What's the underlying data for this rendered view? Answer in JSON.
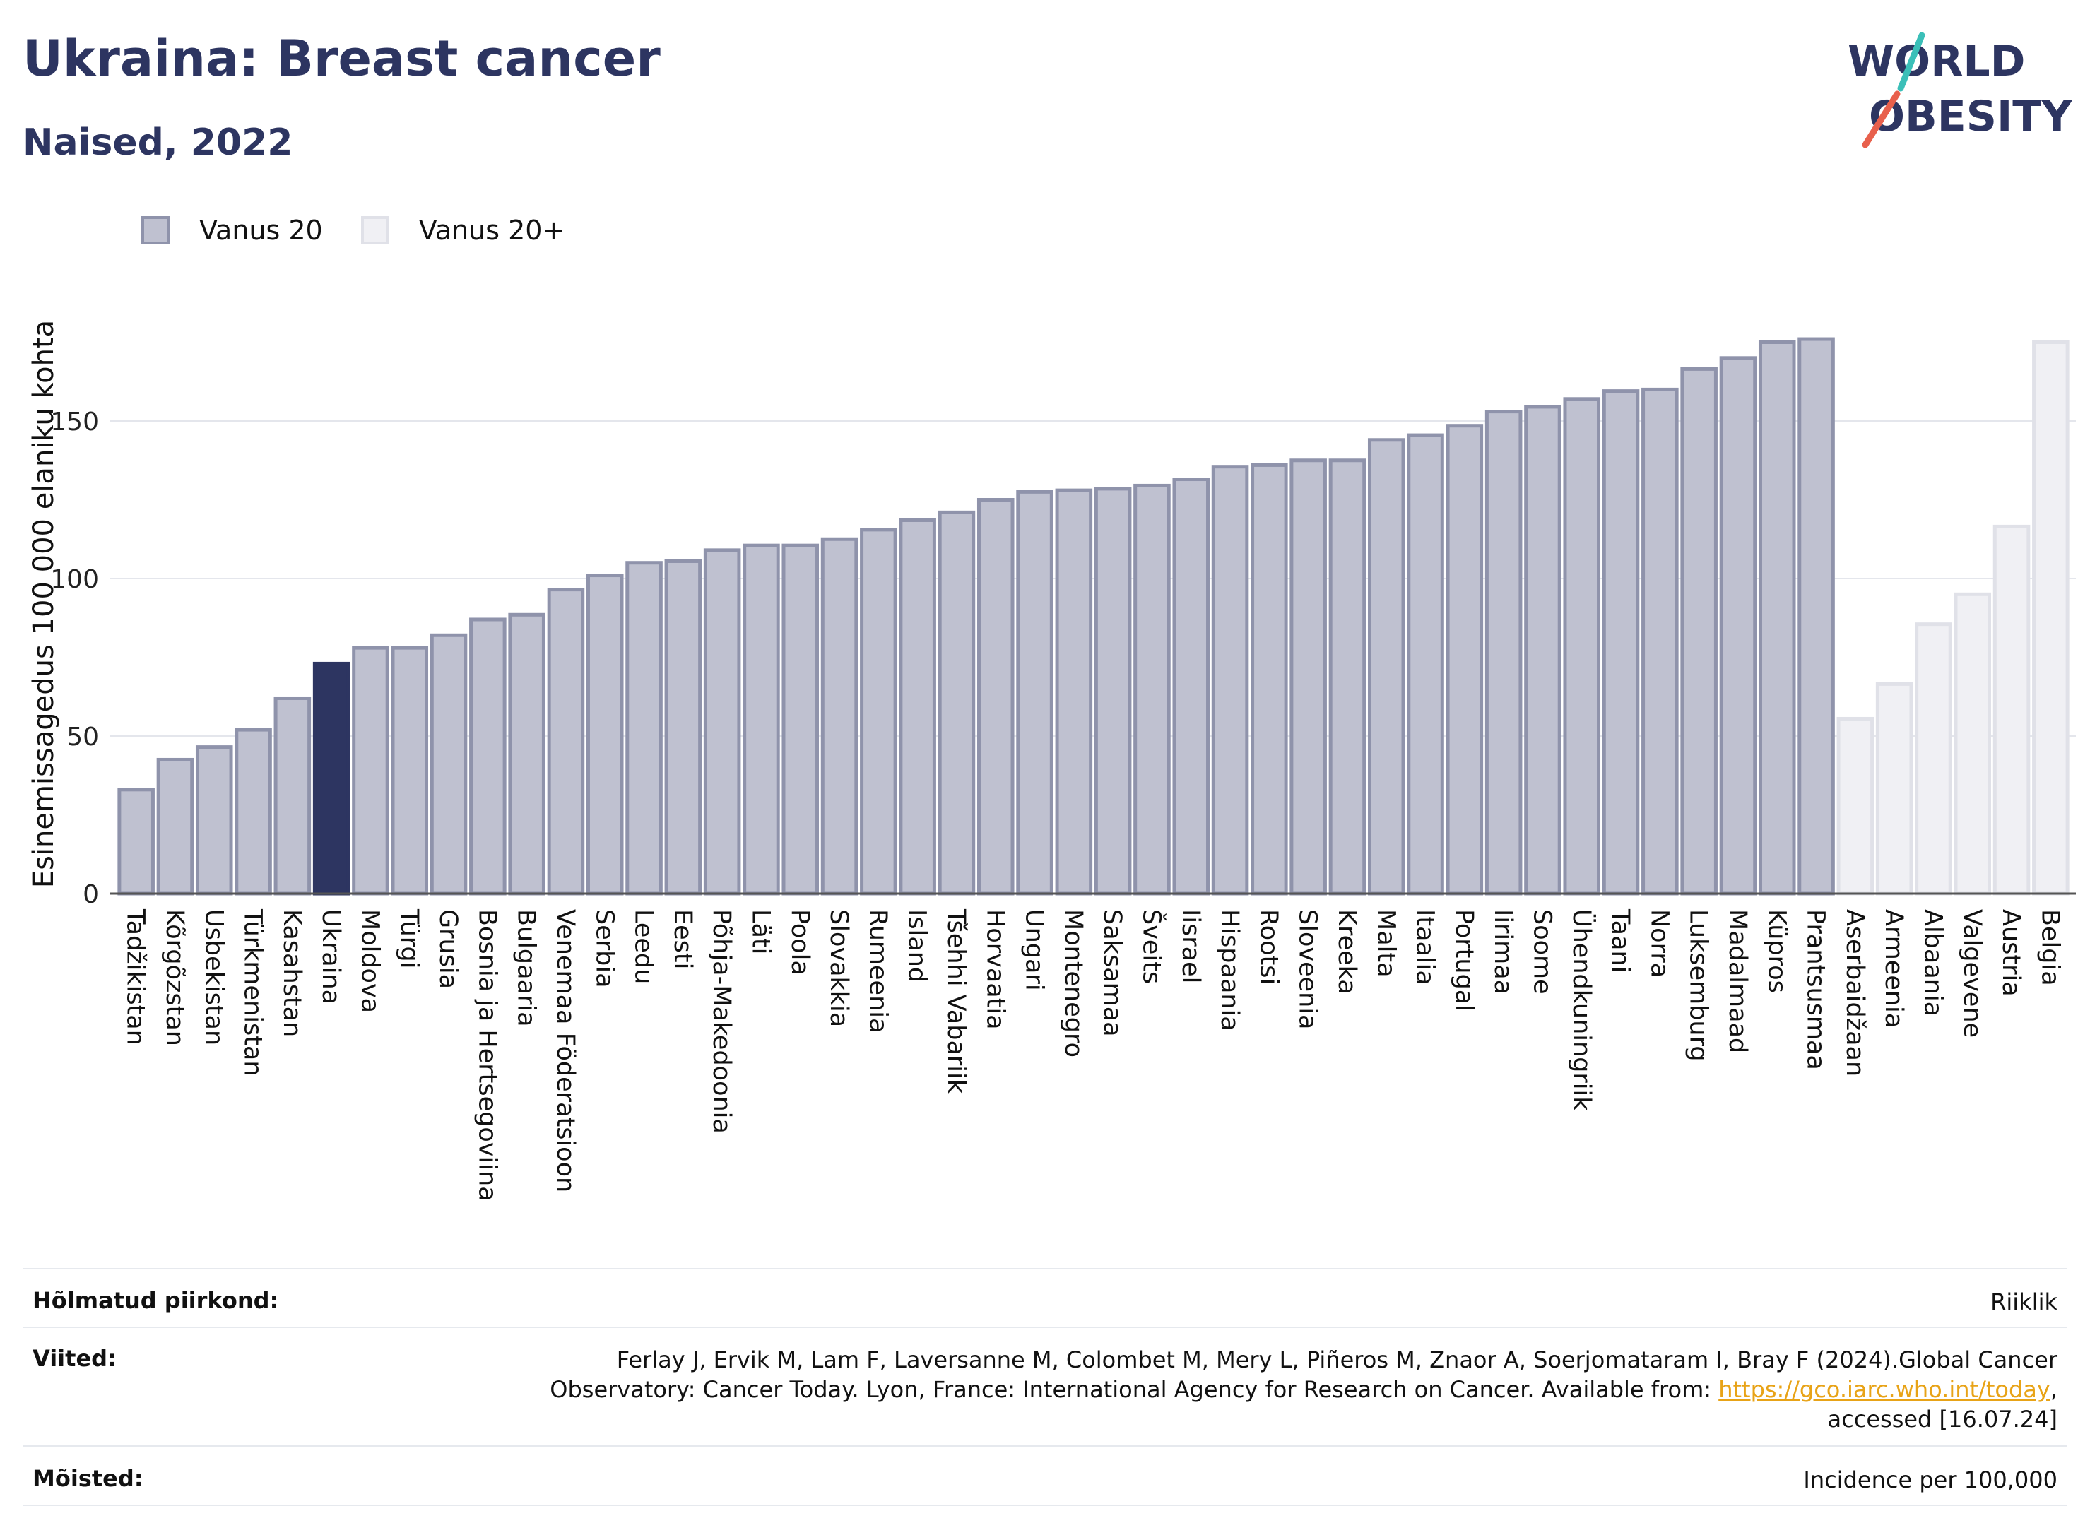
{
  "header": {
    "title": "Ukraina: Breast cancer",
    "subtitle": "Naised, 2022"
  },
  "logo": {
    "line1": "WORLD",
    "line2": "OBESITY"
  },
  "colors": {
    "primary": "#2d3561",
    "bar_default": "#bfc1d0",
    "bar_default_border": "#8f93ab",
    "bar_other": "#f0f0f4",
    "bar_other_border": "#e0e1e8",
    "highlight": "#2d3561",
    "logo_teal": "#3bbfb8",
    "logo_coral": "#e8604c",
    "link": "#e8a317"
  },
  "chart_data": {
    "type": "bar",
    "ylabel": "Esinemissagedus 100 000 elaniku kohta",
    "ylim": [
      0,
      185
    ],
    "yticks": [
      0,
      50,
      100,
      150
    ],
    "grid": true,
    "legend_position": "top-left",
    "highlight": "Ukraina",
    "series": [
      {
        "name": "Vanus 20",
        "key": "a"
      },
      {
        "name": "Vanus 20+",
        "key": "b"
      }
    ],
    "bars": [
      {
        "category": "Tadžikistan",
        "value": 33,
        "series": "a"
      },
      {
        "category": "Kõrgõzstan",
        "value": 42.5,
        "series": "a"
      },
      {
        "category": "Usbekistan",
        "value": 46.5,
        "series": "a"
      },
      {
        "category": "Türkmenistan",
        "value": 52,
        "series": "a"
      },
      {
        "category": "Kasahstan",
        "value": 62,
        "series": "a"
      },
      {
        "category": "Ukraina",
        "value": 73,
        "series": "a"
      },
      {
        "category": "Moldova",
        "value": 78,
        "series": "a"
      },
      {
        "category": "Türgi",
        "value": 78,
        "series": "a"
      },
      {
        "category": "Grusia",
        "value": 82,
        "series": "a"
      },
      {
        "category": "Bosnia ja Hertsegoviina",
        "value": 87,
        "series": "a"
      },
      {
        "category": "Bulgaaria",
        "value": 88.5,
        "series": "a"
      },
      {
        "category": "Venemaa Föderatsioon",
        "value": 96.5,
        "series": "a"
      },
      {
        "category": "Serbia",
        "value": 101,
        "series": "a"
      },
      {
        "category": "Leedu",
        "value": 105,
        "series": "a"
      },
      {
        "category": "Eesti",
        "value": 105.5,
        "series": "a"
      },
      {
        "category": "Põhja-Makedoonia",
        "value": 109,
        "series": "a"
      },
      {
        "category": "Läti",
        "value": 110.5,
        "series": "a"
      },
      {
        "category": "Poola",
        "value": 110.5,
        "series": "a"
      },
      {
        "category": "Slovakkia",
        "value": 112.5,
        "series": "a"
      },
      {
        "category": "Rumeenia",
        "value": 115.5,
        "series": "a"
      },
      {
        "category": "Island",
        "value": 118.5,
        "series": "a"
      },
      {
        "category": "Tšehhi Vabariik",
        "value": 121,
        "series": "a"
      },
      {
        "category": "Horvaatia",
        "value": 125,
        "series": "a"
      },
      {
        "category": "Ungari",
        "value": 127.5,
        "series": "a"
      },
      {
        "category": "Montenegro",
        "value": 128,
        "series": "a"
      },
      {
        "category": "Saksamaa",
        "value": 128.5,
        "series": "a"
      },
      {
        "category": "Šveits",
        "value": 129.5,
        "series": "a"
      },
      {
        "category": "Iisrael",
        "value": 131.5,
        "series": "a"
      },
      {
        "category": "Hispaania",
        "value": 135.5,
        "series": "a"
      },
      {
        "category": "Rootsi",
        "value": 136,
        "series": "a"
      },
      {
        "category": "Sloveenia",
        "value": 137.5,
        "series": "a"
      },
      {
        "category": "Kreeka",
        "value": 137.5,
        "series": "a"
      },
      {
        "category": "Malta",
        "value": 144,
        "series": "a"
      },
      {
        "category": "Itaalia",
        "value": 145.5,
        "series": "a"
      },
      {
        "category": "Portugal",
        "value": 148.5,
        "series": "a"
      },
      {
        "category": "Iirimaa",
        "value": 153,
        "series": "a"
      },
      {
        "category": "Soome",
        "value": 154.5,
        "series": "a"
      },
      {
        "category": "Ühendkuningriik",
        "value": 157,
        "series": "a"
      },
      {
        "category": "Taani",
        "value": 159.5,
        "series": "a"
      },
      {
        "category": "Norra",
        "value": 160,
        "series": "a"
      },
      {
        "category": "Luksemburg",
        "value": 166.5,
        "series": "a"
      },
      {
        "category": "Madalmaad",
        "value": 170,
        "series": "a"
      },
      {
        "category": "Küpros",
        "value": 175,
        "series": "a"
      },
      {
        "category": "Prantsusmaa",
        "value": 176,
        "series": "a"
      },
      {
        "category": "Aserbaidžaan",
        "value": 55.5,
        "series": "b"
      },
      {
        "category": "Armeenia",
        "value": 66.5,
        "series": "b"
      },
      {
        "category": "Albaania",
        "value": 85.5,
        "series": "b"
      },
      {
        "category": "Valgevene",
        "value": 95,
        "series": "b"
      },
      {
        "category": "Austria",
        "value": 116.5,
        "series": "b"
      },
      {
        "category": "Belgia",
        "value": 175,
        "series": "b"
      }
    ]
  },
  "meta": {
    "region_label": "Hõlmatud piirkond:",
    "region_value": "Riiklik",
    "refs_label": "Viited:",
    "refs_line1": "Ferlay J, Ervik M, Lam F, Laversanne M, Colombet M, Mery L, Piñeros M, Znaor A, Soerjomataram I, Bray F (2024).Global Cancer",
    "refs_line2_pre": "Observatory: Cancer Today. Lyon, France: International Agency for Research on Cancer. Available from: ",
    "refs_link": "https://gco.iarc.who.int/today",
    "refs_line2_post": ",",
    "refs_line3": "accessed [16.07.24]",
    "defs_label": "Mõisted:",
    "defs_value": "Incidence per 100,000"
  }
}
